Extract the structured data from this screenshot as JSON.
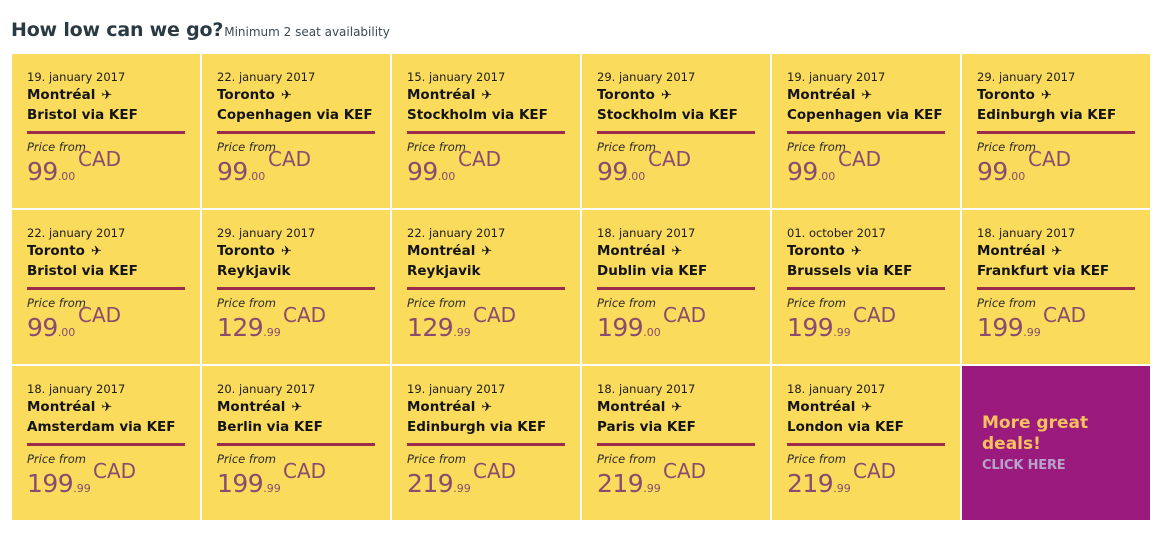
{
  "header": {
    "title": "How low can we go?",
    "subtitle": "Minimum 2 seat availability"
  },
  "colors": {
    "tile_bg": "#fbdb5c",
    "divider": "#9b2c4a",
    "price": "#8a4b6e",
    "promo_bg": "#9b1a7e",
    "promo_headline": "#f6c15e",
    "promo_cta": "#b7a3c9"
  },
  "labels": {
    "price_from": "Price from",
    "currency": "CAD",
    "plane_icon": "✈"
  },
  "deals": [
    {
      "date": "19. january 2017",
      "origin": "Montréal",
      "destination": "Bristol via KEF",
      "price_int": "99",
      "price_cents": ".00",
      "currency": "CAD"
    },
    {
      "date": "22. january 2017",
      "origin": "Toronto",
      "destination": "Copenhagen via KEF",
      "price_int": "99",
      "price_cents": ".00",
      "currency": "CAD"
    },
    {
      "date": "15. january 2017",
      "origin": "Montréal",
      "destination": "Stockholm via KEF",
      "price_int": "99",
      "price_cents": ".00",
      "currency": "CAD"
    },
    {
      "date": "29. january 2017",
      "origin": "Toronto",
      "destination": "Stockholm via KEF",
      "price_int": "99",
      "price_cents": ".00",
      "currency": "CAD"
    },
    {
      "date": "19. january 2017",
      "origin": "Montréal",
      "destination": "Copenhagen via KEF",
      "price_int": "99",
      "price_cents": ".00",
      "currency": "CAD"
    },
    {
      "date": "29. january 2017",
      "origin": "Toronto",
      "destination": "Edinburgh via KEF",
      "price_int": "99",
      "price_cents": ".00",
      "currency": "CAD"
    },
    {
      "date": "22. january 2017",
      "origin": "Toronto",
      "destination": "Bristol via KEF",
      "price_int": "99",
      "price_cents": ".00",
      "currency": "CAD"
    },
    {
      "date": "29. january 2017",
      "origin": "Toronto",
      "destination": "Reykjavik",
      "price_int": "129",
      "price_cents": ".99",
      "currency": "CAD"
    },
    {
      "date": "22. january 2017",
      "origin": "Montréal",
      "destination": "Reykjavik",
      "price_int": "129",
      "price_cents": ".99",
      "currency": "CAD"
    },
    {
      "date": "18. january 2017",
      "origin": "Montréal",
      "destination": "Dublin via KEF",
      "price_int": "199",
      "price_cents": ".00",
      "currency": "CAD"
    },
    {
      "date": "01. october 2017",
      "origin": "Toronto",
      "destination": "Brussels via KEF",
      "price_int": "199",
      "price_cents": ".99",
      "currency": "CAD"
    },
    {
      "date": "18. january 2017",
      "origin": "Montréal",
      "destination": "Frankfurt via KEF",
      "price_int": "199",
      "price_cents": ".99",
      "currency": "CAD"
    },
    {
      "date": "18. january 2017",
      "origin": "Montréal",
      "destination": "Amsterdam via KEF",
      "price_int": "199",
      "price_cents": ".99",
      "currency": "CAD"
    },
    {
      "date": "20. january 2017",
      "origin": "Montréal",
      "destination": "Berlin via KEF",
      "price_int": "199",
      "price_cents": ".99",
      "currency": "CAD"
    },
    {
      "date": "19. january 2017",
      "origin": "Montréal",
      "destination": "Edinburgh via KEF",
      "price_int": "219",
      "price_cents": ".99",
      "currency": "CAD"
    },
    {
      "date": "18. january 2017",
      "origin": "Montréal",
      "destination": "Paris via KEF",
      "price_int": "219",
      "price_cents": ".99",
      "currency": "CAD"
    },
    {
      "date": "18. january 2017",
      "origin": "Montréal",
      "destination": "London via KEF",
      "price_int": "219",
      "price_cents": ".99",
      "currency": "CAD"
    }
  ],
  "promo": {
    "headline": "More great deals!",
    "cta": "CLICK HERE"
  }
}
